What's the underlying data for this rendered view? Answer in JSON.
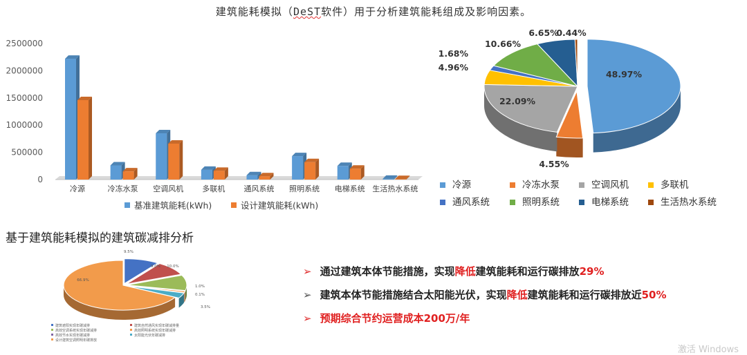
{
  "heading": {
    "pre": "建筑能耗模拟（",
    "underlined": "DeST",
    "post": "软件）用于分析建筑能耗组成及影响因素。"
  },
  "section_title": "基于建筑能耗模拟的建筑碳减排分析",
  "bullets": [
    {
      "pre": "通过建筑本体节能措施，实现",
      "red": "降低",
      "post": "建筑能耗和运行碳排放",
      "tail": "29%"
    },
    {
      "pre": "建筑本体节能措施结合太阳能光伏，实现",
      "red": "降低",
      "post": "建筑能耗和运行碳排放近",
      "tail": "50%"
    },
    {
      "pre": "预期综合节约运营成本200万/年",
      "red": "",
      "post": "",
      "tail": ""
    }
  ],
  "watermark": "激活 Windows",
  "chart_data": [
    {
      "type": "bar",
      "categories": [
        "冷源",
        "冷冻水泵",
        "空调风机",
        "多联机",
        "通风系统",
        "照明系统",
        "电梯系统",
        "生活热水系统"
      ],
      "series": [
        {
          "name": "基准建筑能耗(kWh)",
          "color": "#5b9bd5",
          "values": [
            2220000,
            260000,
            850000,
            180000,
            80000,
            430000,
            250000,
            15000
          ]
        },
        {
          "name": "设计建筑能耗(kWh)",
          "color": "#ed7d31",
          "values": [
            1460000,
            150000,
            660000,
            160000,
            60000,
            320000,
            200000,
            10000
          ]
        }
      ],
      "yticks": [
        "0",
        "500000",
        "1000000",
        "1500000",
        "2000000",
        "2500000"
      ],
      "ylim": [
        0,
        2500000
      ],
      "legend": "bottom"
    },
    {
      "type": "pie",
      "labels": [
        "冷源",
        "冷冻水泵",
        "空调风机",
        "多联机",
        "通风系统",
        "照明系统",
        "电梯系统",
        "生活热水系统"
      ],
      "values": [
        48.97,
        4.55,
        22.09,
        4.96,
        1.68,
        10.66,
        6.65,
        0.44
      ],
      "value_labels": [
        "48.97%",
        "4.55%",
        "22.09%",
        "4.96%",
        "1.68%",
        "10.66%",
        "6.65%",
        "0.44%"
      ],
      "colors": [
        "#5b9bd5",
        "#ed7d31",
        "#a5a5a5",
        "#ffc000",
        "#4472c4",
        "#70ad47",
        "#255e91",
        "#9e480e"
      ],
      "legend": "bottom"
    },
    {
      "type": "pie",
      "values": [
        9.5,
        9.0,
        10.0,
        1.0,
        0.1,
        3.5,
        66.9
      ],
      "value_labels": [
        "9.5%",
        "9.0%",
        "10.0%",
        "1.0%",
        "0.1%",
        "3.5%",
        "66.9%"
      ],
      "colors": [
        "#4472c4",
        "#c0504d",
        "#9bbb59",
        "#f79646",
        "#8064a2",
        "#4bacc6",
        "#f29b4b"
      ],
      "legend_entries": [
        "建筑遮阳实现年碳减排",
        "建筑自然通风实现年碳减排量",
        "高效空调系统实现年碳减排",
        "高效照明系统实现年碳减排",
        "高效节水实现年碳减排",
        "太阳能光伏年碳减排",
        "设计建筑空调照明年碳排放"
      ],
      "legend": "bottom"
    }
  ]
}
